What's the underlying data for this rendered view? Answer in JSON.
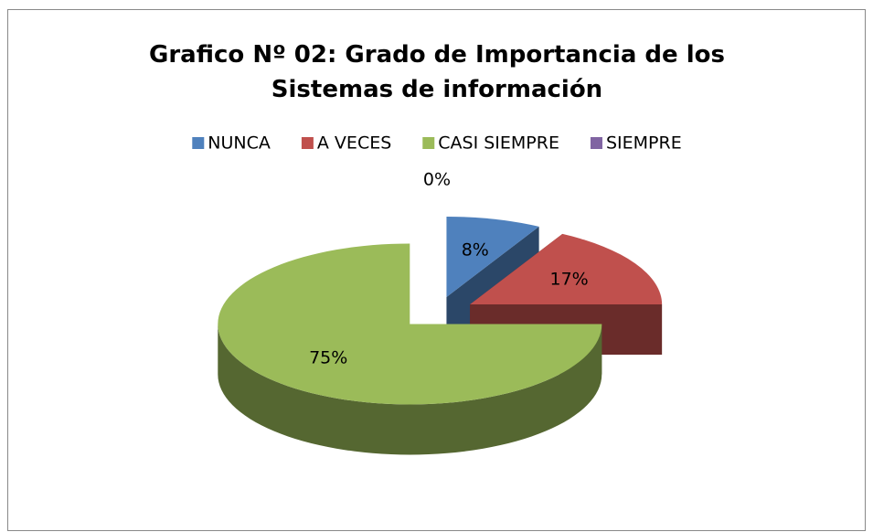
{
  "chart_data": {
    "type": "pie",
    "title": "Grafico Nº 02: Grado de Importancia de los Sistemas de información",
    "categories": [
      "NUNCA",
      "A VECES",
      "CASI SIEMPRE",
      "SIEMPRE"
    ],
    "values": [
      8,
      17,
      75,
      0
    ],
    "value_labels": [
      "8%",
      "17%",
      "75%",
      "0%"
    ],
    "colors": [
      "#4f81bd",
      "#c0504d",
      "#9bbb59",
      "#8064a2"
    ],
    "legend": "top"
  }
}
